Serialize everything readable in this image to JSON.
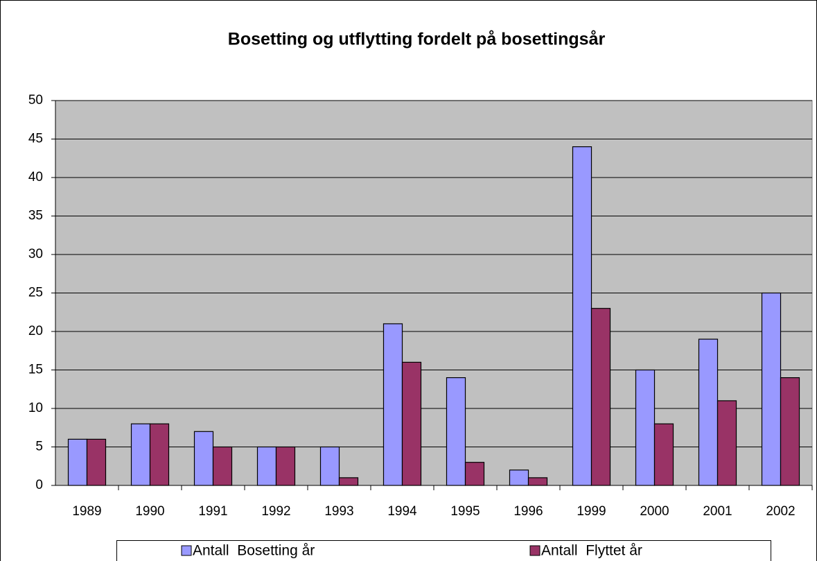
{
  "chart_data": {
    "type": "bar",
    "title": "Bosetting og utflytting fordelt på bosettingsår",
    "categories": [
      "1989",
      "1990",
      "1991",
      "1992",
      "1993",
      "1994",
      "1995",
      "1996",
      "1999",
      "2000",
      "2001",
      "2002"
    ],
    "series": [
      {
        "name": "Antall  Bosetting år",
        "color": "#9999ff",
        "values": [
          6,
          8,
          7,
          5,
          5,
          21,
          14,
          2,
          44,
          15,
          19,
          25
        ]
      },
      {
        "name": "Antall  Flyttet år",
        "color": "#993366",
        "values": [
          6,
          8,
          5,
          5,
          1,
          16,
          3,
          1,
          23,
          8,
          11,
          14
        ]
      }
    ],
    "ylim": [
      0,
      50
    ],
    "yticks": [
      0,
      5,
      10,
      15,
      20,
      25,
      30,
      35,
      40,
      45,
      50
    ],
    "grid": true,
    "legend": "bottom",
    "plot_background": "#c0c0c0"
  }
}
